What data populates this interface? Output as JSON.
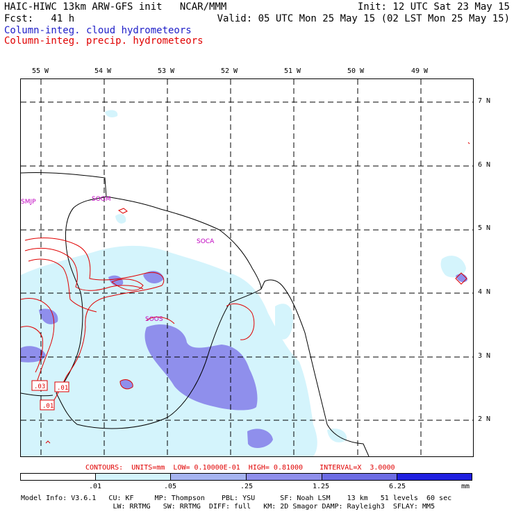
{
  "header": {
    "line1_left": "HAIC-HIWC 13km ARW-GFS init   NCAR/MMM",
    "line1_right": "Init: 12 UTC Sat 23 May 15",
    "line2_left": "Fcst:   41 h",
    "line2_right": "Valid: 05 UTC Mon 25 May 15 (02 LST Mon 25 May 15)",
    "field_cloud": "Column-integ. cloud hydrometeors",
    "field_precip": "Column-integ. precip. hydrometeors"
  },
  "colors": {
    "cloud_title": "#2020c8",
    "precip_title": "#e00000",
    "contour": "#e00000",
    "station": "#c000c0",
    "fill_light": "#d4f4fc",
    "fill_mid": "#a6b4f0",
    "fill_dark": "#8f8fec",
    "fill_deeper": "#6c6ce4",
    "fill_deepest": "#2020e0"
  },
  "map": {
    "lon_labels": [
      "55 W",
      "54 W",
      "53 W",
      "52 W",
      "51 W",
      "50 W",
      "49 W"
    ],
    "lat_labels": [
      "7 N",
      "6 N",
      "5 N",
      "4 N",
      "3 N",
      "2 N"
    ],
    "stations": [
      "SMJP",
      "SOGM",
      "SOCA",
      "SOOS"
    ],
    "contour_labels": [
      ".03",
      ".01",
      ".01"
    ]
  },
  "contours_info": "CONTOURS:  UNITS=mm  LOW= 0.10000E-01  HIGH= 0.81000    INTERVAL=X  3.0000",
  "colorbar": {
    "ticks": [
      ".01",
      ".05",
      ".25",
      "1.25",
      "6.25"
    ],
    "unit": "mm",
    "colors": [
      "#ffffff",
      "#d4f4fc",
      "#a6b4f0",
      "#8f8fec",
      "#6c6ce4",
      "#2020e0"
    ]
  },
  "footer": {
    "line1": "Model Info: V3.6.1   CU: KF     MP: Thompson    PBL: YSU      SF: Noah LSM    13 km   51 levels  60 sec",
    "line2": "                      LW: RRTMG   SW: RRTMG  DIFF: full   KM: 2D Smagor DAMP: Rayleigh3  SFLAY: MM5"
  }
}
